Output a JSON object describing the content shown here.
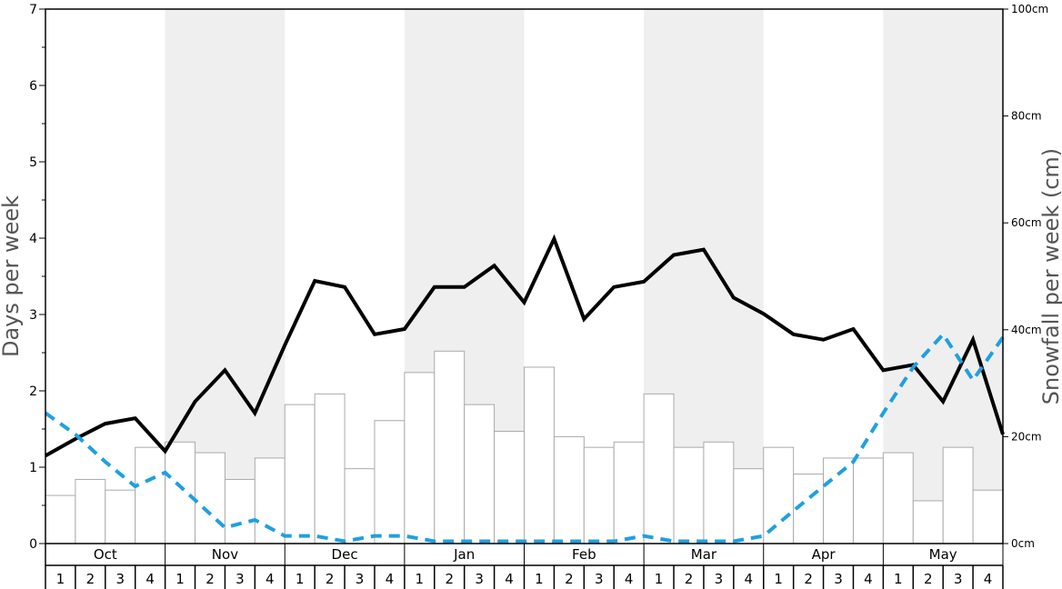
{
  "chart_data": {
    "type": "bar",
    "months": [
      "Oct",
      "Nov",
      "Dec",
      "Jan",
      "Feb",
      "Mar",
      "Apr",
      "May"
    ],
    "week_labels": [
      "1",
      "2",
      "3",
      "4"
    ],
    "shaded_months": [
      "Nov",
      "Jan",
      "Mar",
      "May"
    ],
    "ylabel": "Days per week",
    "y2label": "Snowfall per week (cm)",
    "ylim": [
      0,
      7
    ],
    "y_ticks": [
      0,
      1,
      2,
      3,
      4,
      5,
      6,
      7
    ],
    "y2lim": [
      0,
      100
    ],
    "y2_ticks": [
      0,
      20,
      40,
      60,
      80,
      100
    ],
    "y2_tick_labels": [
      "0cm",
      "20cm",
      "40cm",
      "60cm",
      "80cm",
      "100cm"
    ],
    "grid": false,
    "series": [
      {
        "kind": "bars",
        "axis": "right",
        "values": [
          9,
          12,
          10,
          18,
          19,
          17,
          12,
          16,
          26,
          28,
          14,
          23,
          32,
          36,
          26,
          21,
          33,
          20,
          18,
          19,
          28,
          18,
          19,
          14,
          18,
          13,
          16,
          16,
          17,
          8,
          18,
          10
        ]
      },
      {
        "kind": "line",
        "axis": "left",
        "style": "solid",
        "color": "#000000",
        "values": [
          1.15,
          1.37,
          1.57,
          1.64,
          1.21,
          1.86,
          2.27,
          1.71,
          2.6,
          3.44,
          3.36,
          2.74,
          2.81,
          3.36,
          3.36,
          3.64,
          3.16,
          3.99,
          2.94,
          3.36,
          3.43,
          3.78,
          3.85,
          3.22,
          3.01,
          2.74,
          2.67,
          2.81,
          2.27,
          2.34,
          1.86,
          2.67,
          1.43
        ]
      },
      {
        "kind": "line",
        "axis": "left",
        "style": "dashed",
        "color": "#1fa0e0",
        "values": [
          1.71,
          1.43,
          1.07,
          0.75,
          0.93,
          0.57,
          0.21,
          0.31,
          0.1,
          0.1,
          0.03,
          0.1,
          0.1,
          0.03,
          0.03,
          0.03,
          0.03,
          0.03,
          0.03,
          0.03,
          0.1,
          0.03,
          0.03,
          0.03,
          0.1,
          0.43,
          0.75,
          1.07,
          1.71,
          2.31,
          2.74,
          2.14,
          2.7
        ]
      }
    ]
  }
}
